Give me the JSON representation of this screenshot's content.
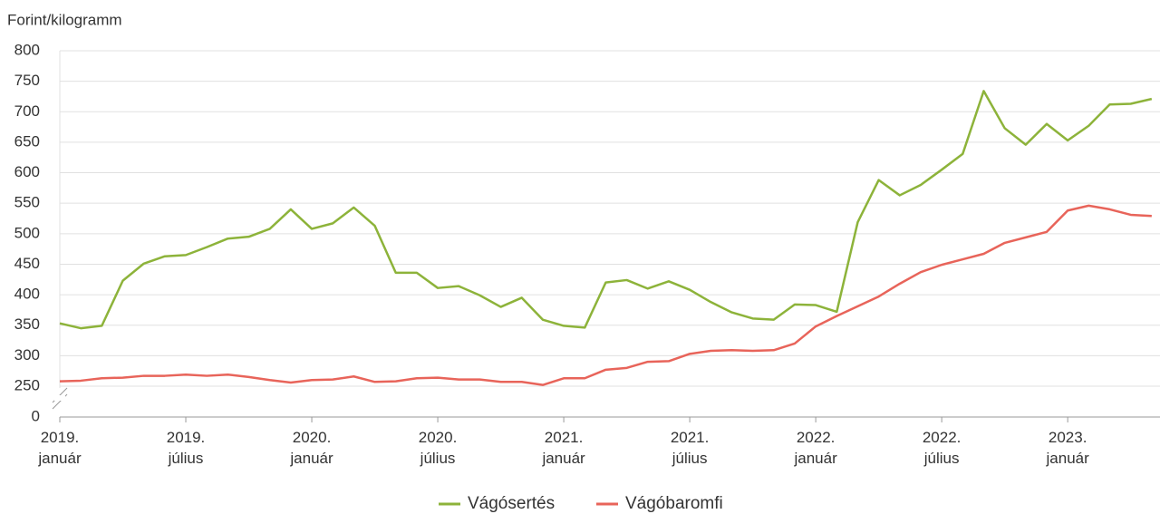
{
  "chart_data": {
    "type": "line",
    "y_label": "Forint/kilogramm",
    "categories": [
      "2019. január",
      null,
      null,
      null,
      null,
      null,
      "2019. július",
      null,
      null,
      null,
      null,
      null,
      "2020. január",
      null,
      null,
      null,
      null,
      null,
      "2020. július",
      null,
      null,
      null,
      null,
      null,
      "2021. január",
      null,
      null,
      null,
      null,
      null,
      "2021. július",
      null,
      null,
      null,
      null,
      null,
      "2022. január",
      null,
      null,
      null,
      null,
      null,
      "2022. július",
      null,
      null,
      null,
      null,
      null,
      "2023. január",
      null,
      null,
      null,
      null
    ],
    "series": [
      {
        "name": "Vágósertés",
        "color": "#8db33a",
        "values": [
          353,
          345,
          349,
          423,
          451,
          463,
          465,
          478,
          492,
          495,
          508,
          540,
          508,
          517,
          543,
          513,
          436,
          436,
          411,
          414,
          399,
          380,
          395,
          359,
          349,
          346,
          420,
          424,
          410,
          422,
          408,
          388,
          371,
          361,
          359,
          384,
          383,
          372,
          519,
          588,
          563,
          580,
          605,
          631,
          734,
          673,
          646,
          680,
          653,
          677,
          712,
          713,
          721
        ]
      },
      {
        "name": "Vágóbaromfi",
        "color": "#e8645a",
        "values": [
          258,
          259,
          263,
          264,
          267,
          267,
          269,
          267,
          269,
          265,
          260,
          256,
          260,
          261,
          266,
          257,
          258,
          263,
          264,
          261,
          261,
          257,
          257,
          252,
          263,
          263,
          277,
          280,
          290,
          291,
          303,
          308,
          309,
          308,
          309,
          320,
          348,
          365,
          381,
          397,
          418,
          437,
          449,
          458,
          467,
          485,
          494,
          503,
          538,
          546,
          540,
          531,
          529
        ]
      }
    ],
    "ylim": [
      0,
      800
    ],
    "y_break": [
      0,
      250
    ],
    "yticks": [
      0,
      250,
      300,
      350,
      400,
      450,
      500,
      550,
      600,
      650,
      700,
      750,
      800
    ],
    "grid": true,
    "legend": "bottom"
  }
}
